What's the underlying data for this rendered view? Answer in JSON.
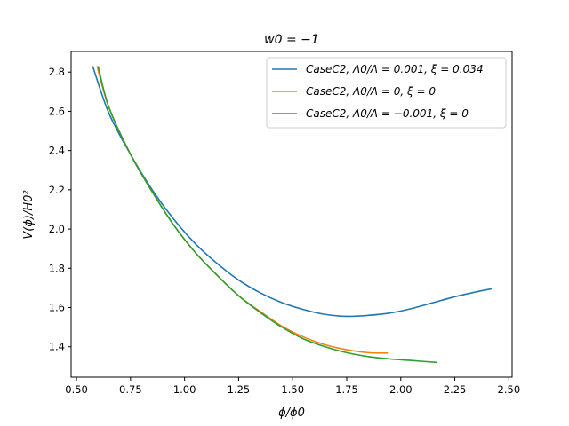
{
  "chart_data": {
    "type": "line",
    "title": "w0 = −1",
    "xlabel": "ϕ/ϕ0",
    "ylabel": "V(ϕ)/H0²",
    "xlim": [
      0.475,
      2.515
    ],
    "ylim": [
      1.245,
      2.905
    ],
    "xticks": [
      0.5,
      0.75,
      1.0,
      1.25,
      1.5,
      1.75,
      2.0,
      2.25,
      2.5
    ],
    "xtick_labels": [
      "0.50",
      "0.75",
      "1.00",
      "1.25",
      "1.50",
      "1.75",
      "2.00",
      "2.25",
      "2.50"
    ],
    "yticks": [
      1.4,
      1.6,
      1.8,
      2.0,
      2.2,
      2.4,
      2.6,
      2.8
    ],
    "ytick_labels": [
      "1.4",
      "1.6",
      "1.8",
      "2.0",
      "2.2",
      "2.4",
      "2.6",
      "2.8"
    ],
    "grid": false,
    "legend_position": "top-right",
    "series": [
      {
        "name": "CaseC2, Λ0/Λ = 0.001, ξ = 0.034",
        "color": "#1f77b4",
        "x": [
          0.575,
          0.65,
          0.75,
          0.85,
          0.95,
          1.05,
          1.15,
          1.25,
          1.35,
          1.45,
          1.55,
          1.65,
          1.75,
          1.85,
          1.95,
          2.05,
          2.15,
          2.25,
          2.35,
          2.42
        ],
        "y": [
          2.83,
          2.59,
          2.38,
          2.2,
          2.05,
          1.925,
          1.825,
          1.74,
          1.675,
          1.625,
          1.59,
          1.565,
          1.555,
          1.56,
          1.572,
          1.595,
          1.625,
          1.655,
          1.68,
          1.695
        ]
      },
      {
        "name": "CaseC2, Λ0/Λ = 0, ξ = 0",
        "color": "#ff7f0e",
        "x": [
          0.595,
          0.65,
          0.75,
          0.85,
          0.95,
          1.05,
          1.15,
          1.25,
          1.35,
          1.45,
          1.55,
          1.65,
          1.75,
          1.85,
          1.94
        ],
        "y": [
          2.83,
          2.62,
          2.38,
          2.19,
          2.02,
          1.88,
          1.765,
          1.66,
          1.58,
          1.505,
          1.45,
          1.41,
          1.385,
          1.37,
          1.368
        ]
      },
      {
        "name": "CaseC2, Λ0/Λ = −0.001, ξ = 0",
        "color": "#2ca02c",
        "x": [
          0.6,
          0.65,
          0.75,
          0.85,
          0.95,
          1.05,
          1.15,
          1.25,
          1.35,
          1.45,
          1.55,
          1.65,
          1.75,
          1.85,
          1.95,
          2.05,
          2.17
        ],
        "y": [
          2.83,
          2.62,
          2.38,
          2.19,
          2.02,
          1.88,
          1.765,
          1.66,
          1.575,
          1.5,
          1.44,
          1.4,
          1.37,
          1.35,
          1.338,
          1.33,
          1.32
        ]
      }
    ]
  }
}
